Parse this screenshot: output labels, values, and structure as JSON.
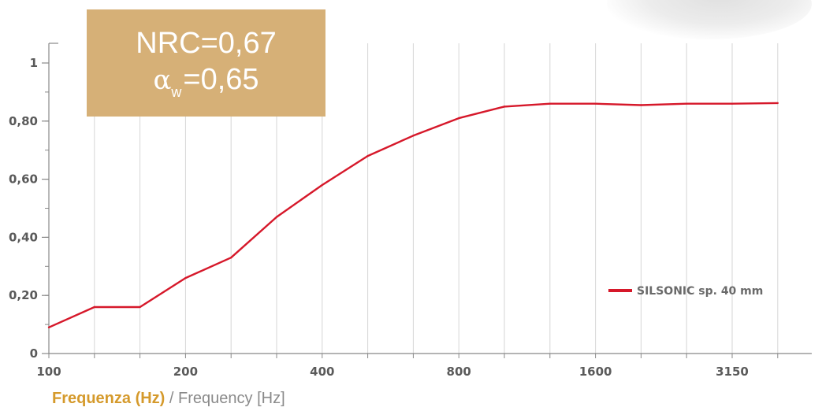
{
  "nrc_box": {
    "line1": "NRC=0,67",
    "alpha_symbol": "α",
    "alpha_sub": "w",
    "alpha_value": "=0,65",
    "color": "#d6b077"
  },
  "xlabel": {
    "it": "Frequenza (Hz)",
    "en": " / Frequency [Hz]"
  },
  "chart_data": {
    "type": "line",
    "title": "",
    "xlabel": "Frequenza (Hz) / Frequency [Hz]",
    "ylabel": "",
    "x": [
      "100",
      "125",
      "160",
      "200",
      "250",
      "315",
      "400",
      "500",
      "630",
      "800",
      "1000",
      "1250",
      "1600",
      "2000",
      "2500",
      "3150",
      "4000"
    ],
    "x_tick_labels": [
      {
        "index": 0,
        "label": "100"
      },
      {
        "index": 3,
        "label": "200"
      },
      {
        "index": 6,
        "label": "400"
      },
      {
        "index": 9,
        "label": "800"
      },
      {
        "index": 12,
        "label": "1600"
      },
      {
        "index": 15,
        "label": "3150"
      }
    ],
    "y_tick_labels": [
      {
        "value": 0,
        "label": "0"
      },
      {
        "value": 0.2,
        "label": "0,20"
      },
      {
        "value": 0.4,
        "label": "0,40"
      },
      {
        "value": 0.6,
        "label": "0,60"
      },
      {
        "value": 0.8,
        "label": "0,80"
      },
      {
        "value": 1.0,
        "label": "1"
      }
    ],
    "ylim": [
      0,
      1.0
    ],
    "grid": true,
    "legend": "right",
    "series": [
      {
        "name": "SILSONIC sp. 40 mm",
        "color": "#d6182a",
        "values": [
          0.09,
          0.16,
          0.16,
          0.26,
          0.33,
          0.47,
          0.58,
          0.68,
          0.75,
          0.81,
          0.85,
          0.86,
          0.86,
          0.855,
          0.86,
          0.86,
          0.862
        ]
      }
    ]
  }
}
